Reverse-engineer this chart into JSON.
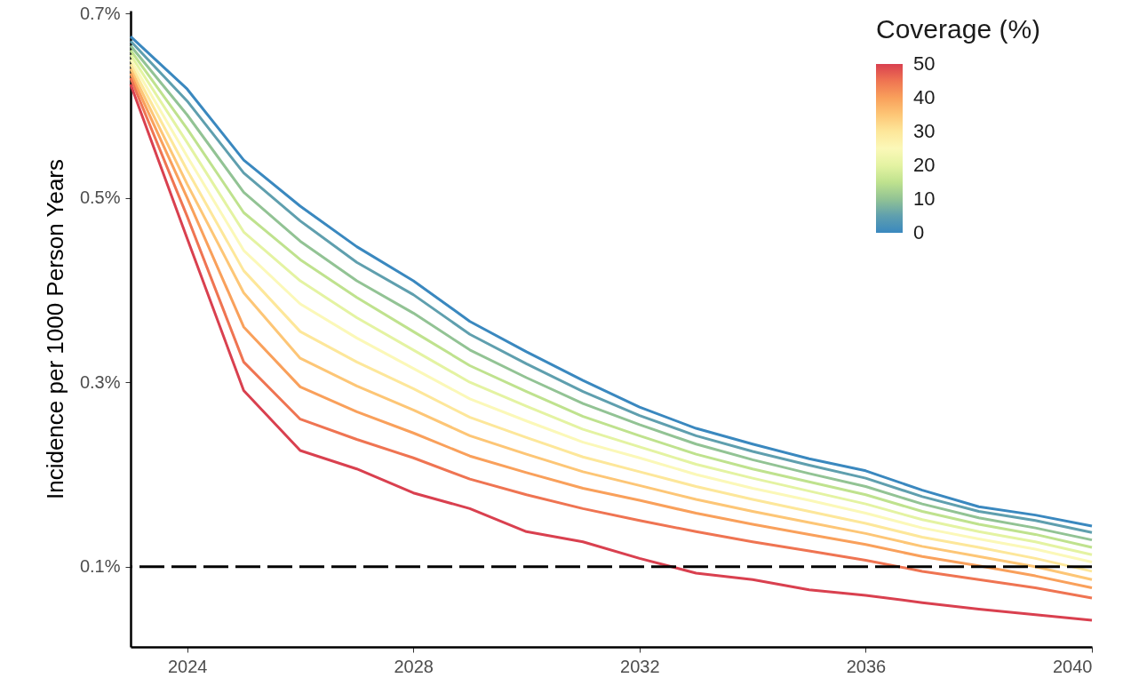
{
  "chart_data": {
    "type": "line",
    "ylabel": "Incidence per 1000 Person Years",
    "clabel": "Coverage (%)",
    "annotations": [
      "50",
      "40",
      "30",
      "20",
      "10",
      "0"
    ],
    "x": [
      2023,
      2024,
      2025,
      2026,
      2027,
      2028,
      2029,
      2030,
      2031,
      2032,
      2033,
      2034,
      2035,
      2036,
      2037,
      2038,
      2039,
      2040
    ],
    "xlim": [
      2023,
      2040
    ],
    "xticks": [
      2024,
      2028,
      2032,
      2036,
      2040
    ],
    "ylim": [
      0.013,
      0.703
    ],
    "yticks": [
      {
        "value": 0.1,
        "label": "0.1%"
      },
      {
        "value": 0.3,
        "label": "0.3%"
      },
      {
        "value": 0.5,
        "label": "0.5%"
      },
      {
        "value": 0.7,
        "label": "0.7%"
      }
    ],
    "grid": false,
    "line_style": "solid",
    "marker": "none",
    "series": [
      {
        "color": "#3a88bf",
        "values": [
          0.675,
          0.618,
          0.541,
          0.491,
          0.447,
          0.41,
          0.366,
          0.333,
          0.302,
          0.273,
          0.25,
          0.233,
          0.217,
          0.204,
          0.183,
          0.165,
          0.156,
          0.144
        ]
      },
      {
        "color": "#5f9fae",
        "values": [
          0.67,
          0.605,
          0.527,
          0.475,
          0.43,
          0.395,
          0.352,
          0.32,
          0.29,
          0.264,
          0.242,
          0.225,
          0.21,
          0.196,
          0.176,
          0.16,
          0.15,
          0.137
        ]
      },
      {
        "color": "#92c394",
        "values": [
          0.665,
          0.59,
          0.506,
          0.453,
          0.41,
          0.375,
          0.335,
          0.305,
          0.277,
          0.254,
          0.233,
          0.216,
          0.201,
          0.187,
          0.168,
          0.153,
          0.142,
          0.129
        ]
      },
      {
        "color": "#bfe28e",
        "values": [
          0.66,
          0.575,
          0.484,
          0.433,
          0.392,
          0.355,
          0.318,
          0.29,
          0.263,
          0.242,
          0.222,
          0.206,
          0.192,
          0.178,
          0.16,
          0.146,
          0.135,
          0.121
        ]
      },
      {
        "color": "#e4f3a2",
        "values": [
          0.655,
          0.56,
          0.463,
          0.41,
          0.37,
          0.335,
          0.3,
          0.274,
          0.249,
          0.23,
          0.211,
          0.196,
          0.182,
          0.168,
          0.151,
          0.138,
          0.127,
          0.113
        ]
      },
      {
        "color": "#fbf8b8",
        "values": [
          0.65,
          0.545,
          0.443,
          0.385,
          0.348,
          0.315,
          0.282,
          0.258,
          0.235,
          0.218,
          0.2,
          0.185,
          0.172,
          0.158,
          0.142,
          0.13,
          0.119,
          0.105
        ]
      },
      {
        "color": "#fde79a",
        "values": [
          0.645,
          0.53,
          0.421,
          0.355,
          0.322,
          0.293,
          0.262,
          0.24,
          0.219,
          0.203,
          0.187,
          0.173,
          0.16,
          0.147,
          0.132,
          0.121,
          0.109,
          0.095
        ]
      },
      {
        "color": "#fdc676",
        "values": [
          0.64,
          0.515,
          0.397,
          0.326,
          0.296,
          0.27,
          0.242,
          0.222,
          0.203,
          0.188,
          0.173,
          0.16,
          0.148,
          0.136,
          0.122,
          0.111,
          0.1,
          0.086
        ]
      },
      {
        "color": "#f9a05b",
        "values": [
          0.635,
          0.5,
          0.36,
          0.295,
          0.268,
          0.245,
          0.22,
          0.202,
          0.185,
          0.172,
          0.158,
          0.146,
          0.135,
          0.124,
          0.111,
          0.101,
          0.09,
          0.077
        ]
      },
      {
        "color": "#ef7452",
        "values": [
          0.63,
          0.48,
          0.322,
          0.26,
          0.238,
          0.218,
          0.195,
          0.178,
          0.163,
          0.15,
          0.138,
          0.127,
          0.117,
          0.107,
          0.095,
          0.086,
          0.077,
          0.066
        ]
      },
      {
        "color": "#d9404f",
        "values": [
          0.623,
          0.456,
          0.291,
          0.226,
          0.206,
          0.18,
          0.163,
          0.138,
          0.127,
          0.109,
          0.093,
          0.086,
          0.075,
          0.069,
          0.061,
          0.054,
          0.048,
          0.042
        ]
      }
    ],
    "ref_lines": [
      {
        "axis": "y",
        "value": 0.1,
        "color": "#000000",
        "line_style": "dashed"
      }
    ]
  }
}
